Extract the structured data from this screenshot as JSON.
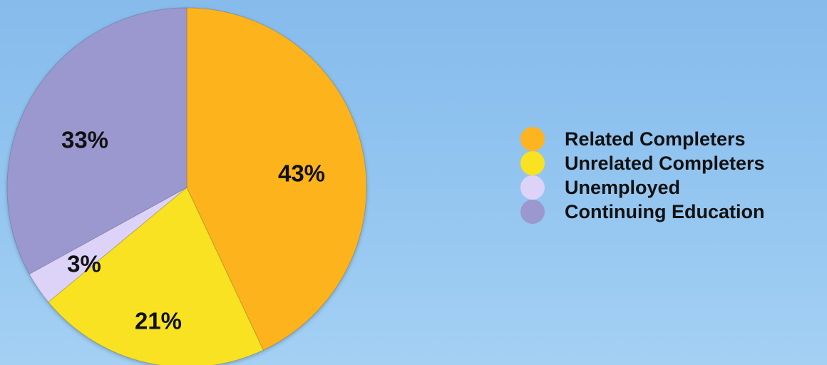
{
  "chart_data": {
    "type": "pie",
    "slices": [
      {
        "name": "Related Completers",
        "value": 43,
        "label": "43%",
        "color": "#fdb41f"
      },
      {
        "name": "Unrelated Completers",
        "value": 21,
        "label": "21%",
        "color": "#f8e221"
      },
      {
        "name": "Unemployed",
        "value": 3,
        "label": "3%",
        "color": "#ddd3f8"
      },
      {
        "name": "Continuing Education",
        "value": 33,
        "label": "33%",
        "color": "#9b98d0"
      }
    ],
    "legend_position": "right"
  }
}
